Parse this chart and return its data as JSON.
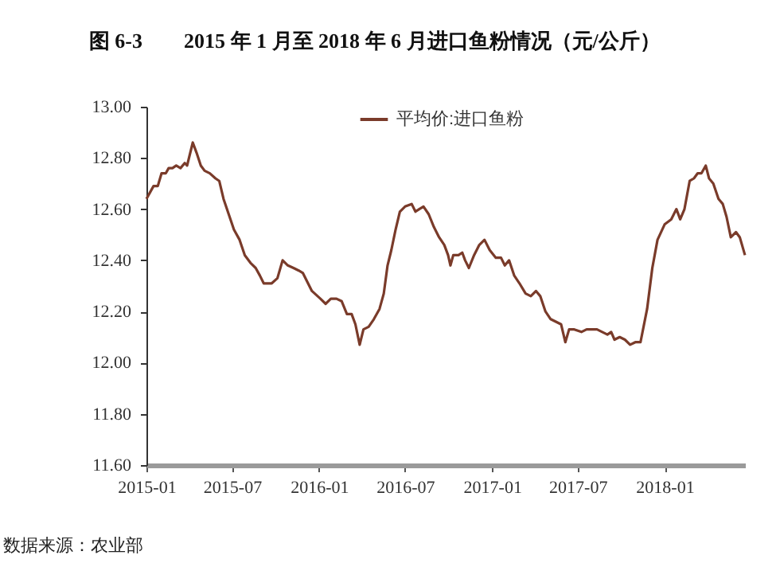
{
  "chart_data": {
    "type": "line",
    "title": "图 6-3　　2015 年 1 月至 2018 年 6 月进口鱼粉情况（元/公斤）",
    "annotations": [
      "数据来源：农业部"
    ],
    "x": [
      "2015-01-01",
      "2015-01-16",
      "2015-01-25",
      "2015-02-02",
      "2015-02-11",
      "2015-02-17",
      "2015-02-25",
      "2015-03-05",
      "2015-03-14",
      "2015-03-23",
      "2015-03-28",
      "2015-04-09",
      "2015-04-17",
      "2015-04-26",
      "2015-05-04",
      "2015-05-15",
      "2015-05-27",
      "2015-06-04",
      "2015-06-13",
      "2015-06-24",
      "2015-07-05",
      "2015-07-17",
      "2015-07-28",
      "2015-08-09",
      "2015-08-20",
      "2015-08-29",
      "2015-09-06",
      "2015-09-23",
      "2015-10-05",
      "2015-10-16",
      "2015-10-27",
      "2015-11-08",
      "2015-11-19",
      "2015-11-28",
      "2015-12-06",
      "2015-12-17",
      "2016-01-04",
      "2016-01-15",
      "2016-01-26",
      "2016-02-07",
      "2016-02-18",
      "2016-02-29",
      "2016-03-10",
      "2016-03-18",
      "2016-03-27",
      "2016-04-04",
      "2016-04-15",
      "2016-04-26",
      "2016-05-08",
      "2016-05-17",
      "2016-05-25",
      "2016-06-02",
      "2016-06-11",
      "2016-06-20",
      "2016-07-01",
      "2016-07-15",
      "2016-07-23",
      "2016-07-31",
      "2016-08-09",
      "2016-08-20",
      "2016-08-31",
      "2016-09-11",
      "2016-09-22",
      "2016-09-30",
      "2016-10-05",
      "2016-10-11",
      "2016-10-22",
      "2016-10-30",
      "2016-11-05",
      "2016-11-13",
      "2016-11-24",
      "2016-12-05",
      "2016-12-16",
      "2016-12-27",
      "2017-01-09",
      "2017-01-20",
      "2017-01-28",
      "2017-02-06",
      "2017-02-17",
      "2017-02-28",
      "2017-03-13",
      "2017-03-24",
      "2017-04-04",
      "2017-04-13",
      "2017-04-24",
      "2017-05-05",
      "2017-05-16",
      "2017-05-27",
      "2017-06-05",
      "2017-06-13",
      "2017-06-24",
      "2017-07-09",
      "2017-07-20",
      "2017-07-31",
      "2017-08-11",
      "2017-08-22",
      "2017-09-02",
      "2017-09-10",
      "2017-09-17",
      "2017-09-28",
      "2017-10-09",
      "2017-10-20",
      "2017-10-31",
      "2017-11-11",
      "2017-11-25",
      "2017-12-06",
      "2017-12-17",
      "2018-01-01",
      "2018-01-15",
      "2018-01-26",
      "2018-02-03",
      "2018-02-12",
      "2018-02-23",
      "2018-03-04",
      "2018-03-12",
      "2018-03-20",
      "2018-03-29",
      "2018-04-05",
      "2018-04-14",
      "2018-04-25",
      "2018-05-04",
      "2018-05-12",
      "2018-05-21",
      "2018-06-01",
      "2018-06-09",
      "2018-06-20"
    ],
    "series": [
      {
        "name": "平均价:进口鱼粉",
        "color": "#7a3b2a",
        "values": [
          12.64,
          12.69,
          12.69,
          12.74,
          12.74,
          12.76,
          12.76,
          12.77,
          12.76,
          12.78,
          12.77,
          12.86,
          12.82,
          12.77,
          12.75,
          12.74,
          12.72,
          12.71,
          12.64,
          12.58,
          12.52,
          12.48,
          12.42,
          12.39,
          12.37,
          12.34,
          12.31,
          12.31,
          12.33,
          12.4,
          12.38,
          12.37,
          12.36,
          12.35,
          12.32,
          12.28,
          12.25,
          12.23,
          12.25,
          12.25,
          12.24,
          12.19,
          12.19,
          12.15,
          12.07,
          12.13,
          12.14,
          12.17,
          12.21,
          12.27,
          12.38,
          12.44,
          12.52,
          12.59,
          12.61,
          12.62,
          12.59,
          12.6,
          12.61,
          12.58,
          12.53,
          12.49,
          12.46,
          12.42,
          12.38,
          12.42,
          12.42,
          12.43,
          12.4,
          12.37,
          12.42,
          12.46,
          12.48,
          12.44,
          12.41,
          12.41,
          12.38,
          12.4,
          12.34,
          12.31,
          12.27,
          12.26,
          12.28,
          12.26,
          12.2,
          12.17,
          12.16,
          12.15,
          12.08,
          12.13,
          12.13,
          12.12,
          12.13,
          12.13,
          12.13,
          12.12,
          12.11,
          12.12,
          12.09,
          12.1,
          12.09,
          12.07,
          12.08,
          12.08,
          12.21,
          12.37,
          12.48,
          12.54,
          12.56,
          12.6,
          12.56,
          12.6,
          12.71,
          12.72,
          12.74,
          12.74,
          12.77,
          12.72,
          12.7,
          12.64,
          12.62,
          12.57,
          12.49,
          12.51,
          12.49,
          12.42
        ]
      }
    ],
    "xlim": [
      "2015-01-01",
      "2018-06-20"
    ],
    "xticks": [
      {
        "value": "2015-01-01",
        "label": "2015-01"
      },
      {
        "value": "2015-07-01",
        "label": "2015-07"
      },
      {
        "value": "2016-01-01",
        "label": "2016-01"
      },
      {
        "value": "2016-07-01",
        "label": "2016-07"
      },
      {
        "value": "2017-01-01",
        "label": "2017-01"
      },
      {
        "value": "2017-07-01",
        "label": "2017-07"
      },
      {
        "value": "2018-01-01",
        "label": "2018-01"
      }
    ],
    "ylim": [
      11.6,
      13.0
    ],
    "yticks": [
      {
        "value": 11.6,
        "label": "11.60"
      },
      {
        "value": 11.8,
        "label": "11.80"
      },
      {
        "value": 12.0,
        "label": "12.00"
      },
      {
        "value": 12.2,
        "label": "12.20"
      },
      {
        "value": 12.4,
        "label": "12.40"
      },
      {
        "value": 12.6,
        "label": "12.60"
      },
      {
        "value": 12.8,
        "label": "12.80"
      },
      {
        "value": 13.0,
        "label": "13.00"
      }
    ],
    "legend": "top",
    "grid": false
  }
}
